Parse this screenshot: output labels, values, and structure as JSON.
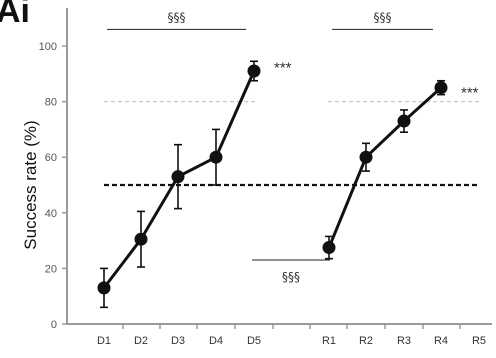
{
  "panel_label": "Ai",
  "chart_data": {
    "type": "line",
    "ylabel": "Success rate (%)",
    "ylim": [
      0,
      100
    ],
    "yticks": [
      0,
      20,
      40,
      60,
      80,
      100
    ],
    "categories": [
      "D1",
      "D2",
      "D3",
      "D4",
      "D5",
      "R1",
      "R2",
      "R3",
      "R4",
      "R5"
    ],
    "series": [
      {
        "x": [
          "D1",
          "D2",
          "D3",
          "D4",
          "D5"
        ],
        "values": [
          13,
          30.5,
          53,
          60,
          91
        ],
        "errors": [
          7,
          10,
          11.5,
          10,
          3.5
        ]
      },
      {
        "x": [
          "R1",
          "R2",
          "R3",
          "R4"
        ],
        "values": [
          27.5,
          60,
          73,
          85
        ],
        "errors": [
          4,
          5,
          4,
          2.5
        ]
      }
    ],
    "reference_lines": [
      {
        "value": 80,
        "style": "dashed",
        "color": "#c8c8c8"
      },
      {
        "value": 50,
        "style": "dashed",
        "color": "#111111"
      }
    ],
    "annotations": [
      {
        "text": "§§§",
        "from": "D1",
        "to": "D5",
        "level": 106
      },
      {
        "text": "§§§",
        "from": "R1",
        "to": "R4",
        "level": 106
      },
      {
        "text": "§§§",
        "from": "D5",
        "to": "R1",
        "level": 23
      },
      {
        "text": "***",
        "at": "D5",
        "level": 94
      },
      {
        "text": "***",
        "at": "R4",
        "level": 85
      }
    ]
  }
}
